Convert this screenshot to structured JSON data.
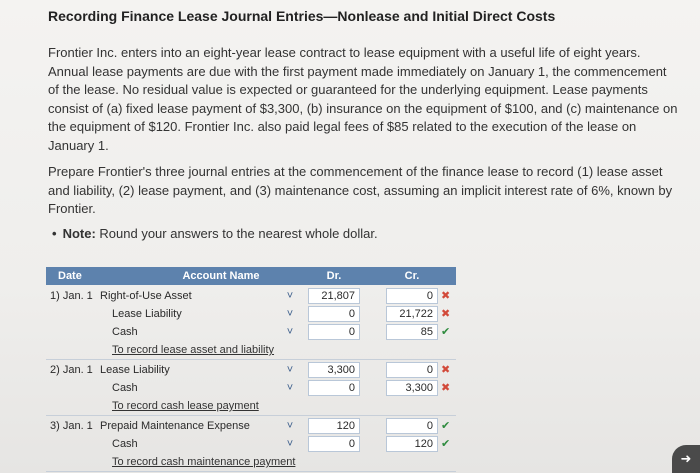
{
  "title": "Recording Finance Lease Journal Entries—Nonlease and Initial Direct Costs",
  "paragraph1": "Frontier Inc. enters into an eight-year lease contract to lease equipment with a useful life of eight years. Annual lease payments are due with the first payment made immediately on January 1, the commencement of the lease. No residual value is expected or guaranteed for the underlying equipment. Lease payments consist of (a) fixed lease payment of $3,300, (b) insurance on the equipment of $100, and (c) maintenance on the equipment of $120. Frontier Inc. also paid legal fees of $85 related to the execution of the lease on January 1.",
  "paragraph2": "Prepare Frontier's three journal entries at the commencement of the finance lease to record (1) lease asset and liability, (2) lease payment, and (3) maintenance cost, assuming an implicit interest rate of 6%, known by Frontier.",
  "note": {
    "label": "Note:",
    "text": " Round your answers to the nearest whole dollar."
  },
  "table": {
    "headers": {
      "date": "Date",
      "account": "Account Name",
      "dr": "Dr.",
      "cr": "Cr."
    },
    "rows": [
      {
        "date": "1) Jan. 1",
        "account": "Right-of-Use Asset",
        "dr": "21,807",
        "cr": "0",
        "mark": "✖",
        "mark_type": "x"
      },
      {
        "date": "",
        "account": "Lease Liability",
        "dr": "0",
        "cr": "21,722",
        "mark": "✖",
        "mark_type": "x"
      },
      {
        "date": "",
        "account": "Cash",
        "dr": "0",
        "cr": "85",
        "mark": "✔",
        "mark_type": "ok"
      },
      {
        "memo": "To record lease asset and liability"
      },
      {
        "date": "2) Jan. 1",
        "account": "Lease Liability",
        "dr": "3,300",
        "cr": "0",
        "mark": "✖",
        "mark_type": "x"
      },
      {
        "date": "",
        "account": "Cash",
        "dr": "0",
        "cr": "3,300",
        "mark": "✖",
        "mark_type": "x"
      },
      {
        "memo": "To record cash lease payment"
      },
      {
        "date": "3) Jan. 1",
        "account": "Prepaid Maintenance Expense",
        "dr": "120",
        "cr": "0",
        "mark": "✔",
        "mark_type": "ok"
      },
      {
        "date": "",
        "account": "Cash",
        "dr": "0",
        "cr": "120",
        "mark": "✔",
        "mark_type": "ok"
      },
      {
        "memo": "To record cash maintenance payment"
      }
    ]
  },
  "colors": {
    "header_bg": "#5d82ad",
    "wrong": "#d24a3a",
    "correct": "#2e8b3e"
  },
  "icons": {
    "dropdown": "chevron-down-icon",
    "wrong": "x-mark-icon",
    "correct": "check-mark-icon",
    "corner": "expand-icon"
  }
}
